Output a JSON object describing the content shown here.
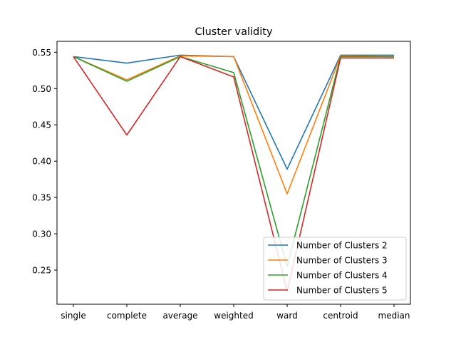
{
  "chart_data": {
    "type": "line",
    "title": "Cluster validity",
    "xlabel": "",
    "ylabel": "",
    "categories": [
      "single",
      "complete",
      "average",
      "weighted",
      "ward",
      "centroid",
      "median"
    ],
    "ylim": [
      0.203,
      0.565
    ],
    "yticks": [
      "0.25",
      "0.30",
      "0.35",
      "0.40",
      "0.45",
      "0.50",
      "0.55"
    ],
    "grid": false,
    "legend": "lower-right",
    "series": [
      {
        "name": "Number of Clusters 2",
        "color": "#1f77b4",
        "values": [
          0.544,
          0.535,
          0.546,
          0.544,
          0.389,
          0.546,
          0.546
        ]
      },
      {
        "name": "Number of Clusters 3",
        "color": "#ff7f0e",
        "values": [
          0.544,
          0.512,
          0.545,
          0.544,
          0.355,
          0.545,
          0.544
        ]
      },
      {
        "name": "Number of Clusters 4",
        "color": "#2ca02c",
        "values": [
          0.544,
          0.51,
          0.544,
          0.522,
          0.255,
          0.544,
          0.544
        ]
      },
      {
        "name": "Number of Clusters 5",
        "color": "#d62728",
        "values": [
          0.544,
          0.436,
          0.544,
          0.516,
          0.221,
          0.542,
          0.542
        ]
      }
    ]
  }
}
